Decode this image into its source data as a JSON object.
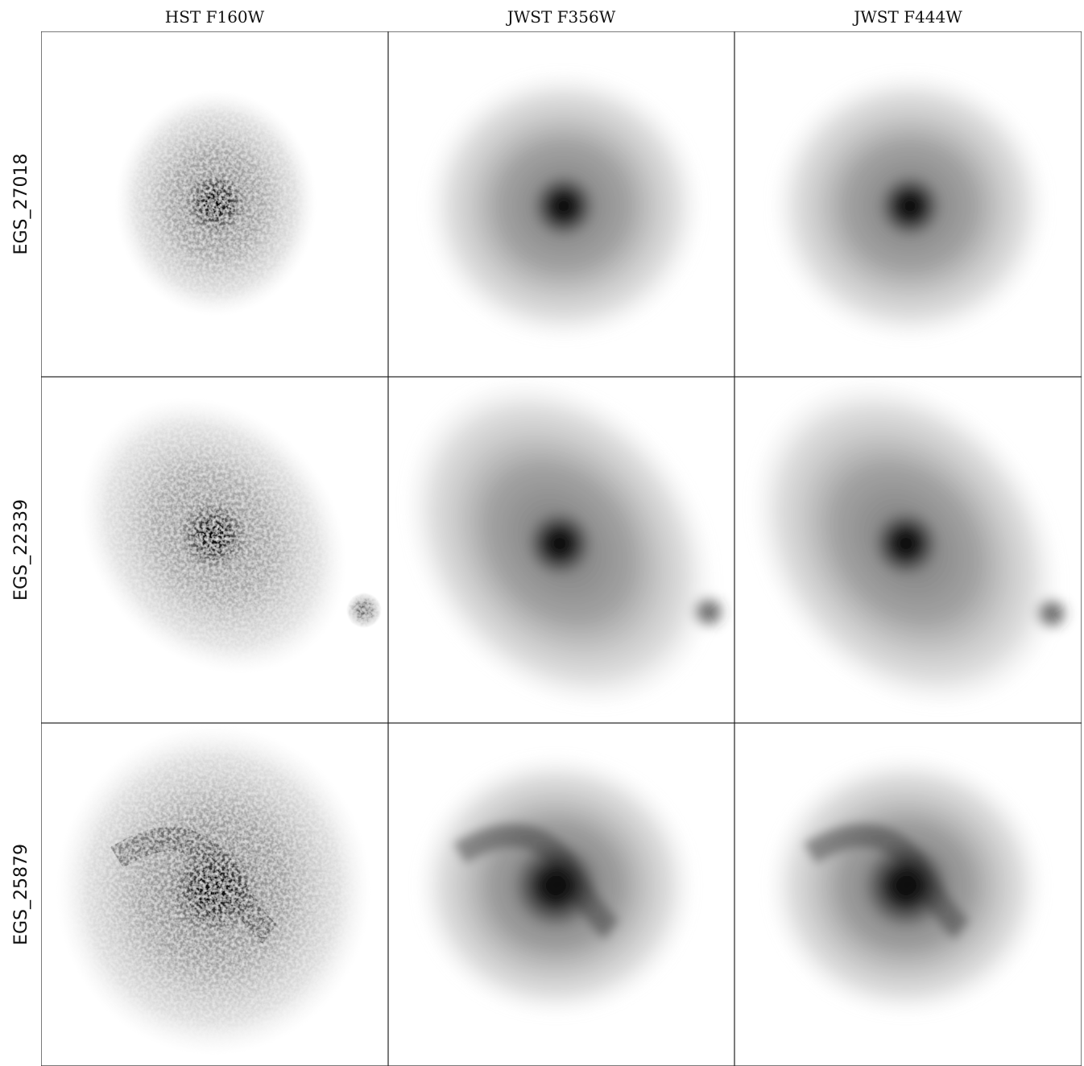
{
  "columns": [
    "HST F160W",
    "JWST F356W",
    "JWST F444W"
  ],
  "rows": [
    "EGS_27018",
    "EGS_22339",
    "EGS_25879"
  ]
}
